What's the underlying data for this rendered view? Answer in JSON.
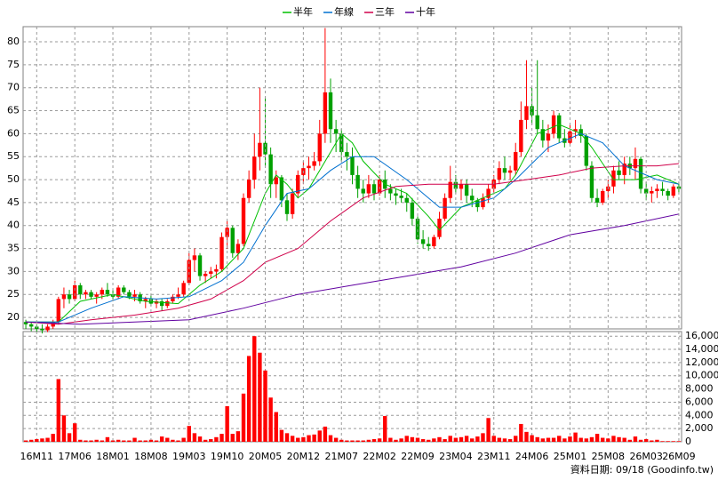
{
  "chart_data": [
    {
      "type": "candlestick",
      "categories": [
        null,
        null,
        "16M11",
        null,
        null,
        null,
        null,
        null,
        null,
        "17M06",
        null,
        null,
        null,
        null,
        null,
        null,
        "18M01",
        null,
        null,
        null,
        null,
        null,
        null,
        "18M08",
        null,
        null,
        null,
        null,
        null,
        null,
        "19M03",
        null,
        null,
        null,
        null,
        null,
        null,
        "19M10",
        null,
        null,
        null,
        null,
        null,
        null,
        "20M05",
        null,
        null,
        null,
        null,
        null,
        null,
        "20M12",
        null,
        null,
        null,
        null,
        null,
        null,
        "21M07",
        null,
        null,
        null,
        null,
        null,
        null,
        "22M02",
        null,
        null,
        null,
        null,
        null,
        null,
        "22M09",
        null,
        null,
        null,
        null,
        null,
        null,
        "23M04",
        null,
        null,
        null,
        null,
        null,
        null,
        "23M11",
        null,
        null,
        null,
        null,
        null,
        null,
        "24M06",
        null,
        null,
        null,
        null,
        null,
        null,
        "25M01",
        null,
        null,
        null,
        null,
        null,
        null,
        "25M08",
        null,
        null,
        null,
        null,
        null,
        null,
        "26M03",
        null,
        null,
        null,
        null,
        null,
        "26M09"
      ],
      "ohlc": [
        [
          19,
          19.5,
          17.5,
          18.5
        ],
        [
          18.5,
          19,
          17,
          18
        ],
        [
          18,
          18.5,
          16.8,
          17.5
        ],
        [
          17.5,
          18.5,
          16.5,
          17.2
        ],
        [
          17.2,
          18.5,
          16.8,
          18
        ],
        [
          18,
          19.5,
          17.5,
          19
        ],
        [
          19,
          24.5,
          18.5,
          24
        ],
        [
          24,
          26.5,
          22,
          25
        ],
        [
          25,
          26,
          23,
          24
        ],
        [
          24,
          28,
          23.5,
          27
        ],
        [
          27,
          27.5,
          24,
          25
        ],
        [
          25,
          26,
          24,
          25.5
        ],
        [
          25.5,
          26,
          24,
          24.5
        ],
        [
          24.5,
          25.5,
          23,
          25
        ],
        [
          25,
          26.5,
          24,
          26
        ],
        [
          26,
          27.5,
          24.5,
          25
        ],
        [
          25,
          26,
          23.5,
          24.5
        ],
        [
          24.5,
          27,
          24,
          26.5
        ],
        [
          26.5,
          27,
          25,
          25.5
        ],
        [
          25.5,
          26,
          24,
          24.5
        ],
        [
          24.5,
          26,
          23.5,
          25
        ],
        [
          25,
          25.5,
          23,
          23.5
        ],
        [
          23.5,
          24.5,
          22,
          24
        ],
        [
          24,
          25,
          22.5,
          23
        ],
        [
          23,
          24,
          22,
          23.5
        ],
        [
          23.5,
          24,
          21.5,
          22.5
        ],
        [
          22.5,
          24,
          22,
          23.5
        ],
        [
          23.5,
          25,
          23,
          24.5
        ],
        [
          24.5,
          26.5,
          24,
          25
        ],
        [
          25,
          28,
          24.5,
          27.5
        ],
        [
          27.5,
          34,
          27,
          32.5
        ],
        [
          32.5,
          35,
          30,
          33.5
        ],
        [
          33.5,
          34,
          28,
          29
        ],
        [
          29,
          30,
          27.5,
          29.5
        ],
        [
          29.5,
          31,
          28.5,
          30
        ],
        [
          30,
          31.5,
          28.5,
          30.5
        ],
        [
          30.5,
          38.5,
          30,
          37.5
        ],
        [
          37.5,
          41,
          35,
          39.5
        ],
        [
          39.5,
          40,
          33,
          34
        ],
        [
          34,
          37,
          32.5,
          36
        ],
        [
          36,
          47,
          35.5,
          46
        ],
        [
          46,
          52,
          45,
          50
        ],
        [
          50,
          60,
          48,
          55
        ],
        [
          55,
          70,
          52,
          58
        ],
        [
          58,
          68,
          53,
          55.5
        ],
        [
          55.5,
          57,
          46,
          49
        ],
        [
          49,
          52,
          46,
          50.5
        ],
        [
          50.5,
          51,
          44,
          45.5
        ],
        [
          45.5,
          47,
          41,
          42.5
        ],
        [
          42.5,
          48,
          41.5,
          47
        ],
        [
          47,
          52,
          46,
          51
        ],
        [
          51,
          54,
          49,
          52.5
        ],
        [
          52.5,
          55,
          50,
          53
        ],
        [
          53,
          56,
          52,
          54
        ],
        [
          54,
          63,
          53,
          60
        ],
        [
          60,
          83,
          58,
          69
        ],
        [
          69,
          72,
          58,
          61
        ],
        [
          61,
          63,
          56,
          60
        ],
        [
          60,
          61,
          54,
          56
        ],
        [
          56,
          58,
          52,
          55
        ],
        [
          55,
          57,
          49,
          51
        ],
        [
          51,
          53,
          46,
          48
        ],
        [
          48,
          50,
          45,
          47
        ],
        [
          47,
          51,
          46,
          49
        ],
        [
          49,
          50,
          45.5,
          47
        ],
        [
          47,
          51,
          46.5,
          50
        ],
        [
          50,
          52,
          46,
          48
        ],
        [
          48,
          49,
          45.5,
          47
        ],
        [
          47,
          48,
          44.5,
          46.5
        ],
        [
          46.5,
          48,
          45,
          46
        ],
        [
          46,
          47,
          43,
          45
        ],
        [
          45,
          46,
          40,
          41.5
        ],
        [
          41.5,
          42,
          36,
          37
        ],
        [
          37,
          39,
          35,
          36
        ],
        [
          36,
          37.5,
          34.5,
          35.5
        ],
        [
          35.5,
          38,
          35,
          37.5
        ],
        [
          37.5,
          43,
          37,
          41.5
        ],
        [
          41.5,
          47,
          41,
          46
        ],
        [
          46,
          53,
          45,
          49.5
        ],
        [
          49.5,
          51,
          47,
          48
        ],
        [
          48,
          50,
          45.5,
          49
        ],
        [
          49,
          50,
          45,
          46.5
        ],
        [
          46.5,
          48,
          44,
          45.5
        ],
        [
          45.5,
          46,
          43,
          44
        ],
        [
          44,
          47,
          43.5,
          46
        ],
        [
          46,
          49,
          45,
          48
        ],
        [
          48,
          51,
          47,
          50
        ],
        [
          50,
          54,
          49,
          52.5
        ],
        [
          52.5,
          55,
          50,
          51.5
        ],
        [
          51.5,
          53,
          50,
          52
        ],
        [
          52,
          58,
          51,
          56
        ],
        [
          56,
          67,
          55,
          63
        ],
        [
          63,
          76,
          61,
          66
        ],
        [
          66,
          70,
          62,
          64
        ],
        [
          64,
          76,
          60,
          61
        ],
        [
          61,
          63,
          57,
          58.5
        ],
        [
          58.5,
          62,
          56,
          60
        ],
        [
          60,
          65,
          59,
          64
        ],
        [
          64,
          64.5,
          58,
          59
        ],
        [
          59,
          61,
          57,
          58
        ],
        [
          58,
          62,
          57.5,
          60.5
        ],
        [
          60.5,
          63,
          59,
          61
        ],
        [
          61,
          62,
          58,
          59.5
        ],
        [
          59.5,
          60,
          52,
          53
        ],
        [
          53,
          54,
          45,
          46
        ],
        [
          46,
          48,
          44,
          45
        ],
        [
          45,
          48,
          44.5,
          47.5
        ],
        [
          47.5,
          50,
          46,
          48.5
        ],
        [
          48.5,
          53,
          47,
          52
        ],
        [
          52,
          54,
          50,
          51
        ],
        [
          51,
          55,
          49,
          53.5
        ],
        [
          53.5,
          55,
          51,
          52.5
        ],
        [
          52.5,
          57,
          50,
          54.5
        ],
        [
          54.5,
          55,
          47,
          48
        ],
        [
          48,
          49.5,
          45.5,
          47
        ],
        [
          47,
          48.5,
          45,
          47.5
        ],
        [
          47.5,
          49,
          46,
          48
        ],
        [
          48,
          49.5,
          46.5,
          47.5
        ],
        [
          47.5,
          48,
          45.5,
          46.5
        ],
        [
          46.5,
          49,
          46,
          48.5
        ],
        [
          48.5,
          49.5,
          47,
          48
        ]
      ],
      "up_color": "#ff0000",
      "down_color": "#00a000",
      "series": [
        {
          "name": "半年",
          "color": "#00c000",
          "x": [
            0,
            6,
            10,
            16,
            22,
            28,
            32,
            36,
            40,
            44,
            46,
            48,
            50,
            52,
            56,
            58,
            60,
            62,
            66,
            70,
            74,
            76,
            80,
            84,
            88,
            90,
            94,
            98,
            100,
            102,
            104,
            108,
            112,
            116,
            120
          ],
          "values": [
            19,
            19,
            23.5,
            25,
            23.5,
            23,
            27,
            30,
            35,
            47,
            51,
            49,
            46,
            48,
            56,
            60,
            58,
            54,
            49,
            47,
            42,
            39,
            44,
            46,
            48,
            51,
            60,
            62,
            61,
            60,
            57,
            50,
            50,
            51,
            49
          ]
        },
        {
          "name": "年線",
          "color": "#0070d0",
          "x": [
            0,
            6,
            12,
            18,
            24,
            30,
            36,
            40,
            44,
            48,
            52,
            56,
            60,
            64,
            70,
            76,
            80,
            86,
            90,
            96,
            102,
            106,
            110,
            116,
            120
          ],
          "values": [
            19,
            19,
            22,
            24.5,
            24,
            24.5,
            28,
            32,
            40,
            47,
            48,
            52,
            55,
            55,
            50,
            44,
            44,
            46,
            50,
            57,
            60,
            58,
            53,
            50,
            49
          ]
        },
        {
          "name": "三年",
          "color": "#d0004a",
          "x": [
            0,
            6,
            12,
            20,
            28,
            34,
            40,
            44,
            50,
            56,
            62,
            68,
            74,
            80,
            86,
            92,
            98,
            104,
            110,
            116,
            120
          ],
          "values": [
            19,
            18.5,
            19.5,
            20.5,
            22,
            24,
            28,
            32,
            35,
            41,
            46,
            48.5,
            49,
            49,
            49,
            50,
            51,
            52.5,
            53,
            53,
            53.5
          ]
        },
        {
          "name": "十年",
          "color": "#6000a0",
          "x": [
            0,
            10,
            20,
            30,
            40,
            50,
            60,
            70,
            80,
            90,
            100,
            110,
            120
          ],
          "values": [
            19,
            18.5,
            19,
            19.5,
            22,
            25,
            27,
            29,
            31,
            34,
            38,
            40,
            42.5
          ]
        }
      ],
      "ylim": [
        17.5,
        83.3
      ],
      "yticks": [
        20,
        25,
        30,
        35,
        40,
        45,
        50,
        55,
        60,
        65,
        70,
        75,
        80
      ],
      "grid": true,
      "legend": "top"
    },
    {
      "type": "bar",
      "color": "#ff0000",
      "values": [
        200,
        300,
        400,
        500,
        600,
        1200,
        9500,
        4000,
        1300,
        2800,
        300,
        200,
        200,
        300,
        200,
        700,
        200,
        300,
        200,
        200,
        600,
        200,
        200,
        300,
        200,
        800,
        600,
        300,
        200,
        600,
        2400,
        1300,
        800,
        300,
        400,
        700,
        1200,
        5400,
        1200,
        1600,
        7300,
        13000,
        16000,
        13500,
        10800,
        6700,
        4500,
        1800,
        1300,
        900,
        600,
        700,
        1000,
        1100,
        1700,
        2300,
        1000,
        600,
        300,
        200,
        200,
        200,
        200,
        300,
        400,
        500,
        3900,
        600,
        300,
        500,
        900,
        700,
        600,
        400,
        300,
        500,
        700,
        400,
        900,
        600,
        700,
        900,
        500,
        800,
        1300,
        3600,
        900,
        600,
        500,
        400,
        900,
        2700,
        1500,
        1000,
        700,
        500,
        600,
        600,
        900,
        500,
        800,
        1400,
        600,
        500,
        700,
        1200,
        600,
        500,
        900,
        700,
        600,
        300,
        800,
        300,
        400,
        200,
        300,
        100,
        100,
        100,
        100
      ],
      "ylim": [
        0,
        16700
      ],
      "yticks": [
        0,
        {
          "value": 2000,
          "label": "2,000"
        },
        {
          "value": 4000,
          "label": "4,000"
        },
        {
          "value": 6000,
          "label": "6,000"
        },
        {
          "value": 8000,
          "label": "8,000"
        },
        {
          "value": 10000,
          "label": "10,000"
        },
        {
          "value": 12000,
          "label": "12,000"
        },
        {
          "value": 14000,
          "label": "14,000"
        },
        {
          "value": 16000,
          "label": "16,000"
        }
      ],
      "grid": true
    }
  ],
  "footer": "資料日期: 09/18 (Goodinfo.tw)"
}
